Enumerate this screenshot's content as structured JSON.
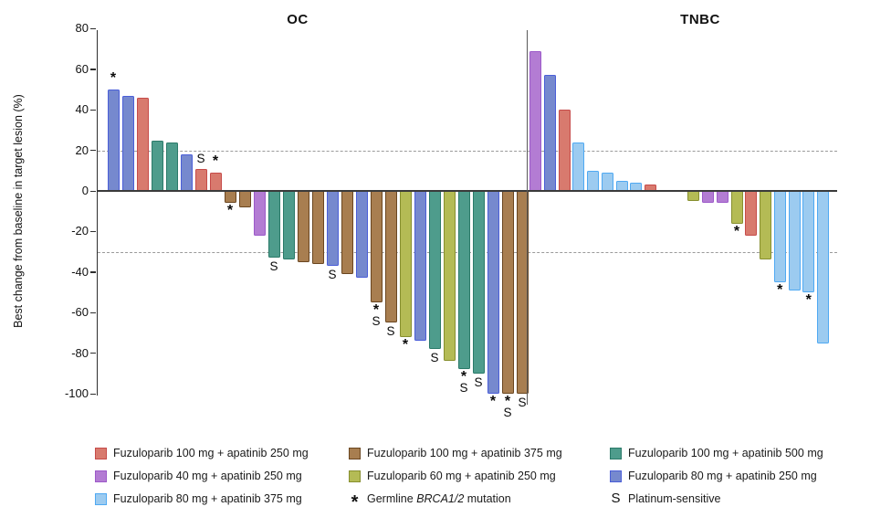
{
  "y_axis": {
    "label": "Best change from baseline in target lesion (%)",
    "ticks": [
      80,
      60,
      40,
      20,
      0,
      -20,
      -40,
      -60,
      -80,
      -100
    ],
    "max": 80,
    "min": -100
  },
  "reference_lines": {
    "upper": 20,
    "lower": -30,
    "color": "#9a9a9a",
    "style": "dashed"
  },
  "treatments": {
    "f100_a250": {
      "label": "Fuzuloparib 100 mg + apatinib 250 mg",
      "fill": "#D87A6E",
      "border": "#C64B49"
    },
    "f100_a375": {
      "label": "Fuzuloparib 100 mg + apatinib 375 mg",
      "fill": "#A87E50",
      "border": "#6A4620"
    },
    "f100_a500": {
      "label": "Fuzuloparib 100 mg + apatinib 500 mg",
      "fill": "#4E9C8C",
      "border": "#2B7A69"
    },
    "f40_a250": {
      "label": "Fuzuloparib 40 mg + apatinib 250 mg",
      "fill": "#B37CD3",
      "border": "#9C59C9"
    },
    "f60_a250": {
      "label": "Fuzuloparib 60 mg + apatinib 250 mg",
      "fill": "#B4BB55",
      "border": "#878F2F"
    },
    "f80_a250": {
      "label": "Fuzuloparib 80 mg + apatinib 250 mg",
      "fill": "#7689CE",
      "border": "#4A5ED8"
    },
    "f80_a375": {
      "label": "Fuzuloparib 80 mg + apatinib 375 mg",
      "fill": "#9CCBF0",
      "border": "#4FA9F2"
    }
  },
  "chart_data": {
    "type": "bar",
    "title": "",
    "ylabel": "Best change from baseline in target lesion (%)",
    "ylim": [
      -100,
      80
    ],
    "grid": "off",
    "reference_lines": [
      20,
      -30
    ],
    "marker_legend": {
      "*": "Germline BRCA1/2 mutation",
      "S": "Platinum-sensitive"
    },
    "panels": [
      {
        "name": "OC",
        "bars": [
          {
            "v": 50,
            "t": "f80_a250",
            "m": "*"
          },
          {
            "v": 47,
            "t": "f80_a250"
          },
          {
            "v": 46,
            "t": "f100_a250"
          },
          {
            "v": 25,
            "t": "f100_a500"
          },
          {
            "v": 24,
            "t": "f100_a500"
          },
          {
            "v": 18,
            "t": "f80_a250"
          },
          {
            "v": 11,
            "t": "f100_a250",
            "m": "S"
          },
          {
            "v": 9,
            "t": "f100_a250",
            "m": "*"
          },
          {
            "v": -6,
            "t": "f100_a375",
            "m": "*"
          },
          {
            "v": -8,
            "t": "f100_a375"
          },
          {
            "v": -22,
            "t": "f40_a250"
          },
          {
            "v": -33,
            "t": "f100_a500",
            "m": "S"
          },
          {
            "v": -34,
            "t": "f100_a500"
          },
          {
            "v": -35,
            "t": "f100_a375"
          },
          {
            "v": -36,
            "t": "f100_a375"
          },
          {
            "v": -37,
            "t": "f80_a250",
            "m": "S"
          },
          {
            "v": -41,
            "t": "f100_a375"
          },
          {
            "v": -43,
            "t": "f80_a250"
          },
          {
            "v": -55,
            "t": "f100_a375",
            "m": "*S"
          },
          {
            "v": -65,
            "t": "f100_a375",
            "m": "S"
          },
          {
            "v": -72,
            "t": "f60_a250",
            "m": "*"
          },
          {
            "v": -74,
            "t": "f80_a250"
          },
          {
            "v": -78,
            "t": "f100_a500",
            "m": "S"
          },
          {
            "v": -84,
            "t": "f60_a250"
          },
          {
            "v": -88,
            "t": "f100_a500",
            "m": "*S"
          },
          {
            "v": -90,
            "t": "f100_a500",
            "m": "S"
          },
          {
            "v": -100,
            "t": "f80_a250",
            "m": "*"
          },
          {
            "v": -100,
            "t": "f100_a375",
            "m": "*S"
          },
          {
            "v": -100,
            "t": "f100_a375",
            "m": "S"
          }
        ]
      },
      {
        "name": "TNBC",
        "bars": [
          {
            "v": 69,
            "t": "f40_a250"
          },
          {
            "v": 57,
            "t": "f80_a250"
          },
          {
            "v": 40,
            "t": "f100_a250"
          },
          {
            "v": 24,
            "t": "f80_a375"
          },
          {
            "v": 10,
            "t": "f80_a375"
          },
          {
            "v": 9,
            "t": "f80_a375"
          },
          {
            "v": 5,
            "t": "f80_a375"
          },
          {
            "v": 4,
            "t": "f80_a375"
          },
          {
            "v": 3,
            "t": "f100_a250"
          },
          {
            "gap": true
          },
          {
            "gap": true
          },
          {
            "v": -5,
            "t": "f60_a250"
          },
          {
            "v": -6,
            "t": "f40_a250"
          },
          {
            "v": -6,
            "t": "f40_a250"
          },
          {
            "v": -16,
            "t": "f60_a250",
            "m": "*"
          },
          {
            "v": -22,
            "t": "f100_a250"
          },
          {
            "v": -34,
            "t": "f60_a250"
          },
          {
            "v": -45,
            "t": "f80_a375",
            "m": "*"
          },
          {
            "v": -49,
            "t": "f80_a375"
          },
          {
            "v": -50,
            "t": "f80_a375",
            "m": "*"
          },
          {
            "v": -75,
            "t": "f80_a375"
          }
        ]
      }
    ]
  },
  "legend": {
    "items": [
      {
        "type": "swatch",
        "treatment": "f100_a250"
      },
      {
        "type": "swatch",
        "treatment": "f100_a375"
      },
      {
        "type": "swatch",
        "treatment": "f100_a500"
      },
      {
        "type": "swatch",
        "treatment": "f40_a250"
      },
      {
        "type": "swatch",
        "treatment": "f60_a250"
      },
      {
        "type": "swatch",
        "treatment": "f80_a250"
      },
      {
        "type": "swatch",
        "treatment": "f80_a375"
      },
      {
        "type": "symbol",
        "symbol": "*",
        "parts": [
          {
            "t": "Germline "
          },
          {
            "t": "BRCA1/2",
            "italic": true
          },
          {
            "t": " mutation"
          }
        ]
      },
      {
        "type": "symbol",
        "symbol": "S",
        "parts": [
          {
            "t": "Platinum-sensitive"
          }
        ]
      }
    ]
  }
}
